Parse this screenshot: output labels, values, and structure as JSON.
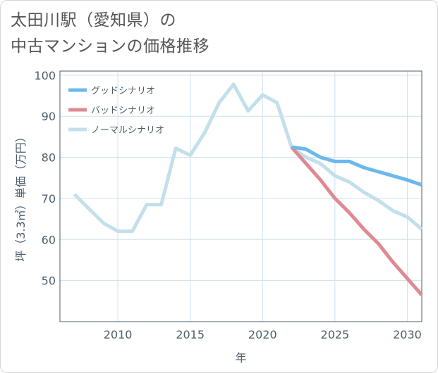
{
  "title": {
    "line1": "太田川駅（愛知県）の",
    "line2": "中古マンションの価格推移"
  },
  "chart_data": {
    "type": "line",
    "xlabel": "年",
    "ylabel": "坪（3.3㎡）単価（万円）",
    "xlim": [
      2006,
      2031
    ],
    "ylim": [
      40,
      101
    ],
    "xticks": [
      2010,
      2015,
      2020,
      2025,
      2030
    ],
    "yticks": [
      50,
      60,
      70,
      80,
      90,
      100
    ],
    "grid": true,
    "legend_position": "top-left",
    "series": [
      {
        "name": "グッドシナリオ",
        "color": "#6bb8ec",
        "x": [
          2022,
          2023,
          2024,
          2025,
          2026,
          2027,
          2028,
          2029,
          2030,
          2031
        ],
        "values": [
          82.5,
          82,
          80,
          79,
          79,
          77.5,
          76.5,
          75.5,
          74.5,
          73.3
        ]
      },
      {
        "name": "バッドシナリオ",
        "color": "#de8a93",
        "x": [
          2022,
          2023,
          2024,
          2025,
          2026,
          2027,
          2028,
          2029,
          2030,
          2031
        ],
        "values": [
          82.5,
          78.5,
          74.5,
          70,
          66.5,
          62.5,
          59,
          54.5,
          50.5,
          46.5
        ]
      },
      {
        "name": "ノーマルシナリオ",
        "color": "#c3dfec",
        "x": [
          2007,
          2008,
          2009,
          2010,
          2011,
          2012,
          2013,
          2014,
          2015,
          2016,
          2017,
          2018,
          2019,
          2020,
          2021,
          2022,
          2023,
          2024,
          2025,
          2026,
          2027,
          2028,
          2029,
          2030,
          2031
        ],
        "values": [
          71,
          67.5,
          64,
          62,
          62,
          68.5,
          68.5,
          82.2,
          80.5,
          86,
          93.3,
          97.8,
          91.3,
          95.2,
          93.3,
          82.5,
          80,
          78.5,
          75.5,
          74,
          71.5,
          69.5,
          67,
          65.5,
          62.5
        ]
      }
    ]
  }
}
